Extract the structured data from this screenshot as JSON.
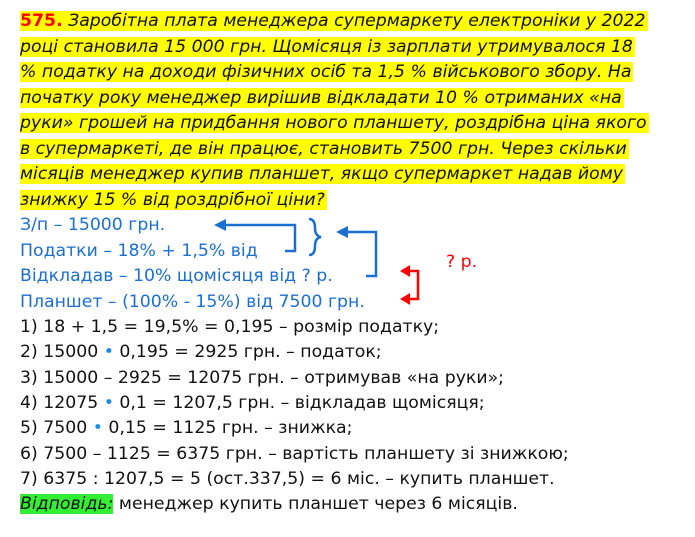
{
  "problem": {
    "number": "575.",
    "lines": [
      " Заробітна плата менеджера супермаркету електроніки у 2022",
      "році становила 15 000 грн. Щомісяця із зарплати утримувалося 18",
      "% податку на доходи фізичних осіб та 1,5 % військового збору. На",
      "початку року менеджер вирішив відкладати 10 % отриманих «на",
      "руки» грошей на придбання нового планшету, роздрібна ціна якого",
      "в супермаркеті, де він працює, становить 7500 грн. Через скільки",
      "місяців менеджер купив планшет, якщо супермаркет надав йому",
      "знижку 15 % від роздрібної ціни?"
    ]
  },
  "scheme": {
    "lines": [
      "З/п – 15000 грн.",
      "Податки – 18% + 1,5% від",
      "Відкладав – 10% щомісяця від  ? р.",
      "Планшет – (100% - 15%) від 7500 грн."
    ],
    "unknown": "? р."
  },
  "steps": [
    [
      "1) 18 + 1,5 = 19,5% = 0,195 – розмір податку;"
    ],
    [
      "2) 15000 ",
      "•",
      " 0,195 = 2925 грн. – податок;"
    ],
    [
      "3) 15000 – 2925 = 12075 грн. – отримував «на руки»;"
    ],
    [
      "4) 12075 ",
      "•",
      " 0,1 = 1207,5 грн. – відкладав щомісяця;"
    ],
    [
      "5) 7500 ",
      "•",
      " 0,15 = 1125 грн. – знижка;"
    ],
    [
      "6) 7500 – 1125 = 6375 грн. – вартість планшету зі знижкою;"
    ],
    [
      "7) 6375 : 1207,5 = 5 (ост.337,5) = 6 міс. – купить планшет."
    ]
  ],
  "answer": {
    "label": "Відповідь:",
    "text": " менеджер купить планшет через 6 місяців."
  },
  "colors": {
    "highlight": "#ffff00",
    "number": "#ff0000",
    "scheme": "#1a6fd0",
    "answer_bg": "#33ee33"
  }
}
